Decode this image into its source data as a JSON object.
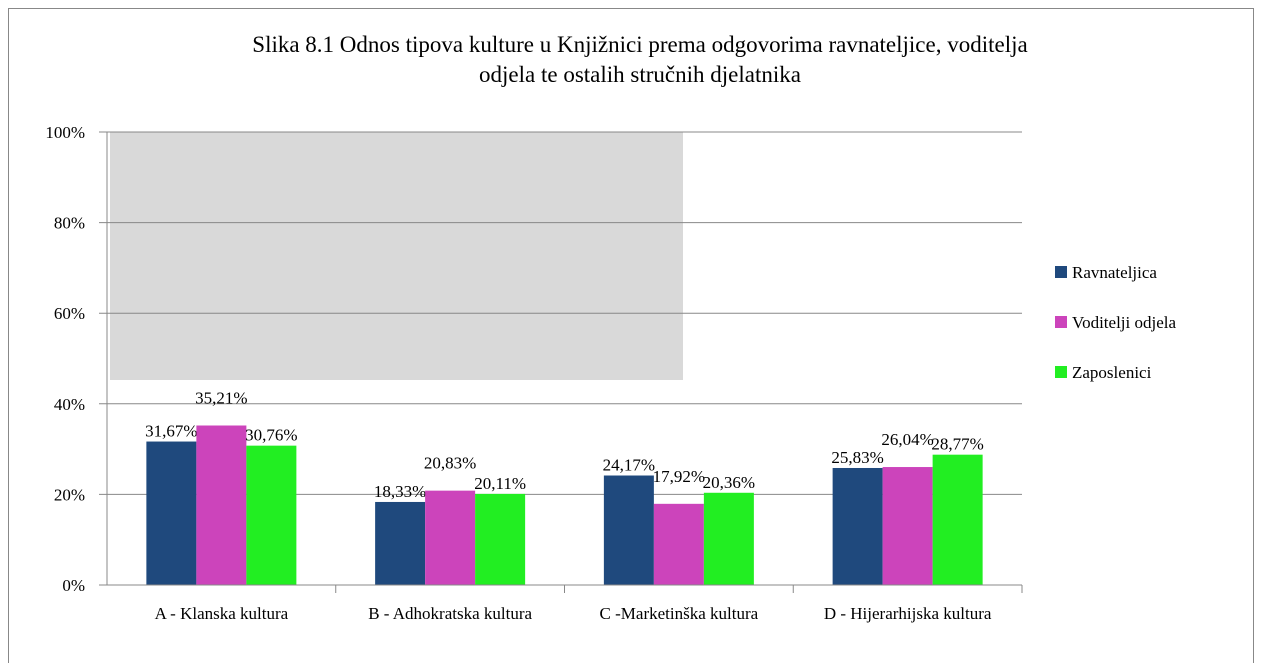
{
  "chart_data": {
    "type": "bar",
    "title": "Slika 8.1 Odnos tipova kulture u Knjižnici prema odgovorima ravnateljice, voditelja odjela te ostalih stručnih djelatnika",
    "categories": [
      "A - Klanska kultura",
      "B - Adhokratska kultura",
      "C -Marketinška kultura",
      "D - Hijerarhijska kultura"
    ],
    "series": [
      {
        "name": "Ravnateljica",
        "color": "#1f497d",
        "values": [
          31.67,
          18.33,
          24.17,
          25.83
        ],
        "value_labels": [
          "31,67%",
          "18,33%",
          "24,17%",
          "25,83%"
        ]
      },
      {
        "name": "Voditelji odjela",
        "color": "#cc44bb",
        "values": [
          35.21,
          20.83,
          17.92,
          26.04
        ],
        "value_labels": [
          "35,21%",
          "20,83%",
          "17,92%",
          "26,04%"
        ]
      },
      {
        "name": "Zaposlenici",
        "color": "#22ee22",
        "values": [
          30.76,
          20.11,
          20.36,
          28.77
        ],
        "value_labels": [
          "30,76%",
          "20,11%",
          "20,36%",
          "28,77%"
        ]
      }
    ],
    "ylim": [
      0,
      100
    ],
    "yticks": [
      {
        "value": 0,
        "label": "0%"
      },
      {
        "value": 20,
        "label": "20%"
      },
      {
        "value": 40,
        "label": "40%"
      },
      {
        "value": 60,
        "label": "60%"
      },
      {
        "value": 80,
        "label": "80%"
      },
      {
        "value": 100,
        "label": "100%"
      }
    ],
    "grid": true,
    "legend": "right"
  }
}
